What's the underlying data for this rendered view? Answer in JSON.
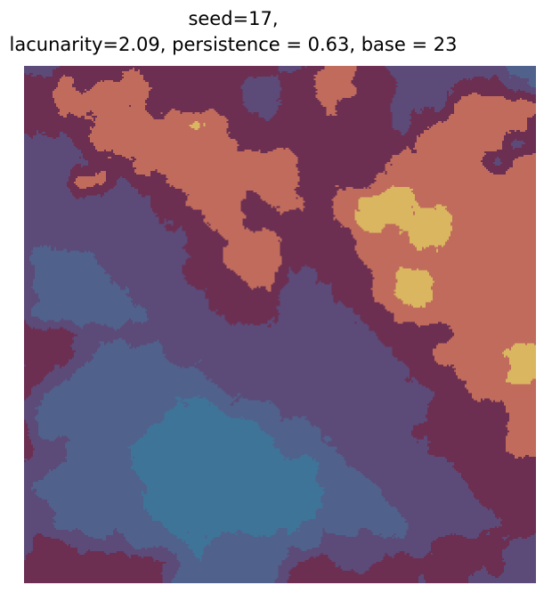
{
  "figure": {
    "title_line1": "seed=17,",
    "title_line2": "lacunarity=2.09, persistence = 0.63, base = 23",
    "title_color": "#000000",
    "background": "#FFFFFF"
  },
  "chart_data": {
    "type": "heatmap",
    "title": "seed=17,\nlacunarity=2.09, persistence = 0.63, base = 23",
    "params": {
      "seed": 17,
      "lacunarity": 2.09,
      "persistence": 0.63,
      "base": 23
    },
    "axes_visible": false,
    "grid_on": false,
    "legend": "none",
    "levels": {
      "names": [
        "teal",
        "slate-blue",
        "purple",
        "claret",
        "salmon",
        "gold"
      ],
      "colors": [
        "#3F7499",
        "#50618C",
        "#5C4A78",
        "#6C2F52",
        "#C06B5C",
        "#DAB660"
      ]
    },
    "noise_amplitude": 0.62,
    "octaves": 4,
    "cells": [
      "2233333333333323443322222211",
      "3343444333332233443322233321",
      "3344444333332233433322244444",
      "3333444445433333333323444443",
      "2223444444443333333334444423",
      "2222334444444443333344444244",
      "2224423344444443333444444444",
      "2222222334443443345554444444",
      "2222222233443333345555544444",
      "2222222223344433334445544444",
      "2111222223344433334444444444",
      "2111122223334422333455444444",
      "2111112222333322233455444444",
      "2111111222233322223344444444",
      "3332222222222222222333344444",
      "3332111122222222222233444455",
      "3321111111222222222223344455",
      "3211111111122222222222334444",
      "2111111100011122222222333344",
      "3111111000000111222223333344",
      "3221110000000011122222333344",
      "2211110000000000112222233333",
      "2111111000000000111222223333",
      "2211111000000000111122222333",
      "2211111100000001111112222233",
      "2332221110111111222222333322",
      "3333333321111123322333333322",
      "3333333311111133333332332222"
    ]
  }
}
